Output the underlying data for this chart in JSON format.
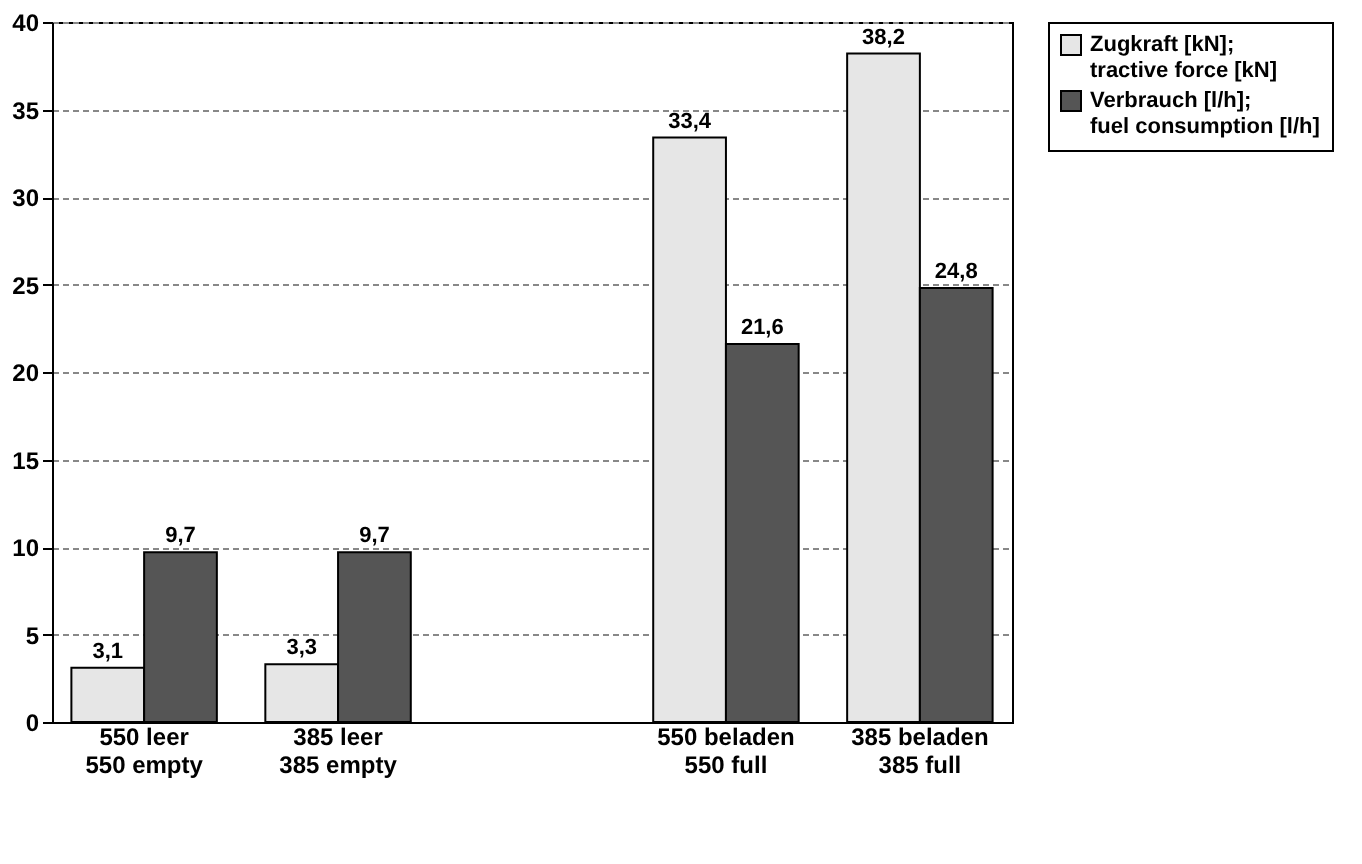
{
  "chart_data": {
    "type": "bar",
    "categories": [
      "550 leer\n550 empty",
      "385 leer\n385 empty",
      null,
      "550 beladen\n550 full",
      "385 beladen\n385 full"
    ],
    "series": [
      {
        "name": "Zugkraft [kN]; tractive force [kN]",
        "color": "#e6e6e6",
        "values": [
          3.1,
          3.3,
          null,
          33.4,
          38.2
        ],
        "value_labels": [
          "3,1",
          "3,3",
          null,
          "33,4",
          "38,2"
        ]
      },
      {
        "name": "Verbrauch [l/h]; fuel consumption [l/h]",
        "color": "#555555",
        "values": [
          9.7,
          9.7,
          null,
          21.6,
          24.8
        ],
        "value_labels": [
          "9,7",
          "9,7",
          null,
          "21,6",
          "24,8"
        ]
      }
    ],
    "ylim": [
      0,
      40
    ],
    "yticks": [
      0,
      5,
      10,
      15,
      20,
      25,
      30,
      35,
      40
    ],
    "grid": "y",
    "legend": "right"
  }
}
